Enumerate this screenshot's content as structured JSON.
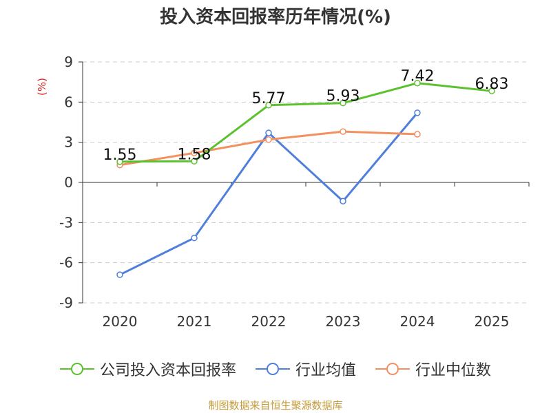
{
  "chart_data": {
    "type": "line",
    "title": "投入资本回报率历年情况(%)",
    "ylabel": "(%)",
    "categories": [
      "2020",
      "2021",
      "2022",
      "2023",
      "2024",
      "2025"
    ],
    "ylim": [
      -9,
      9
    ],
    "yticks": [
      "9",
      "6",
      "3",
      "0",
      "-3",
      "-6",
      "-9"
    ],
    "ytick_values": [
      9,
      6,
      3,
      0,
      -3,
      -6,
      -9
    ],
    "grid": true,
    "legend_position": "bottom",
    "series": [
      {
        "name": "公司投入资本回报率",
        "color": "#5cc12f",
        "values": [
          1.55,
          1.58,
          5.77,
          5.93,
          7.42,
          6.83
        ],
        "labels": [
          "1.55",
          "1.58",
          "5.77",
          "5.93",
          "7.42",
          "6.83"
        ]
      },
      {
        "name": "行业均值",
        "color": "#4f7fdb",
        "values": [
          -6.9,
          -4.15,
          3.7,
          -1.4,
          5.2,
          null
        ]
      },
      {
        "name": "行业中位数",
        "color": "#f29060",
        "values": [
          1.3,
          2.2,
          3.2,
          3.8,
          3.6,
          null
        ]
      }
    ],
    "source": "制图数据来自恒生聚源数据库"
  }
}
